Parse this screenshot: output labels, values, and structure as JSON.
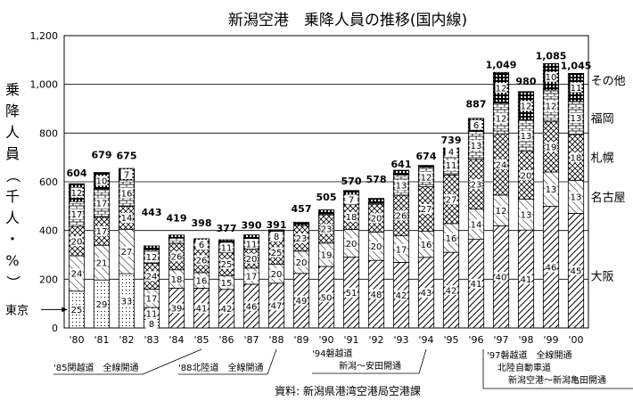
{
  "chart_data": {
    "type": "bar",
    "stacked": true,
    "title": "新潟空港　乗降人員の推移(国内線)",
    "ylabel": "乗降人員（千人・%）",
    "ylim": [
      0,
      1200
    ],
    "yticks": [
      "0",
      "200",
      "400",
      "600",
      "800",
      "1,000",
      "1,200"
    ],
    "yticks_values": [
      0,
      200,
      400,
      600,
      800,
      1000,
      1200
    ],
    "grid": true,
    "categories": [
      "'80",
      "'81",
      "'82",
      "'83",
      "'84",
      "'85",
      "'86",
      "'87",
      "'88",
      "'89",
      "'90",
      "'91",
      "'92",
      "'93",
      "'94",
      "'95",
      "'96",
      "'97",
      "'98",
      "'99",
      "'00"
    ],
    "totals": [
      604,
      679,
      675,
      443,
      419,
      398,
      377,
      390,
      391,
      457,
      505,
      570,
      578,
      641,
      674,
      739,
      887,
      1049,
      980,
      1085,
      1045
    ],
    "total_labels": [
      "604",
      "679",
      "675",
      "443",
      "419",
      "398",
      "377",
      "390",
      "391",
      "457",
      "505",
      "570",
      "578",
      "641",
      "674",
      "739",
      "887",
      "1,049",
      "980",
      "1,085",
      "1,045"
    ],
    "series": [
      {
        "name": "東京",
        "pattern": "dots",
        "shares": [
          25,
          29,
          33,
          8,
          null,
          null,
          null,
          null,
          null,
          null,
          null,
          null,
          null,
          null,
          null,
          null,
          null,
          null,
          null,
          null,
          null
        ]
      },
      {
        "name": "大阪",
        "pattern": "hatch",
        "shares": [
          null,
          null,
          null,
          11,
          39,
          41,
          42,
          46,
          47,
          49,
          50,
          51,
          48,
          42,
          43,
          42,
          41,
          40,
          41,
          46,
          45
        ]
      },
      {
        "name": "名古屋",
        "pattern": "diag",
        "shares": [
          24,
          21,
          27,
          17,
          18,
          16,
          15,
          17,
          20,
          20,
          19,
          20,
          20,
          17,
          16,
          16,
          14,
          12,
          13,
          13,
          13
        ]
      },
      {
        "name": "札幌",
        "pattern": "cross",
        "shares": [
          20,
          17,
          14,
          24,
          26,
          26,
          25,
          20,
          25,
          23,
          23,
          18,
          20,
          26,
          27,
          27,
          23,
          24,
          20,
          19,
          18
        ]
      },
      {
        "name": "福岡",
        "pattern": "brick",
        "shares": [
          17,
          17,
          16,
          12,
          5,
          6,
          11,
          11,
          8,
          0,
          1,
          7,
          1,
          13,
          12,
          11,
          13,
          12,
          13,
          12,
          13
        ]
      },
      {
        "name": "その他",
        "pattern": "dense",
        "shares": [
          12,
          10,
          7,
          4,
          3,
          3,
          3,
          4,
          3,
          3,
          3,
          3,
          3,
          3,
          1,
          4,
          6,
          12,
          12,
          10,
          11
        ]
      }
    ],
    "series_right_labels": [
      "その他",
      "福岡",
      "札幌",
      "名古屋",
      "大阪"
    ],
    "tokyo_arrow_label": "東京",
    "annotations": [
      {
        "text": "'85関越道　全線開通",
        "x": "'85"
      },
      {
        "text": "'88北陸道　全線開通",
        "x": "'88"
      },
      {
        "text": "'94磐越道",
        "x": "'94"
      },
      {
        "text": "新潟～安田開通",
        "x": "'94"
      },
      {
        "text": "'97磐越道　全線開通",
        "x": "'97"
      },
      {
        "text": "北陸自動車道",
        "x": "'97"
      },
      {
        "text": "新潟空港～新潟亀田開通",
        "x": "'97"
      }
    ],
    "source": "資料: 新潟県港湾空港局空港課"
  }
}
